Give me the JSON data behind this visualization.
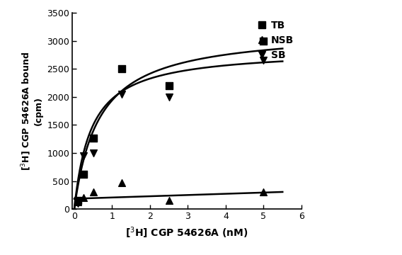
{
  "title": "",
  "xlabel": "[$^3$H] CGP 54626A (nM)",
  "ylabel_line1": "[$^3$H] CGP 54626A bound",
  "ylabel_line2": "(cpm)",
  "xlim": [
    -0.05,
    6.0
  ],
  "ylim": [
    0,
    3500
  ],
  "xticks": [
    0,
    1,
    2,
    3,
    4,
    5,
    6
  ],
  "yticks": [
    0,
    500,
    1000,
    1500,
    2000,
    2500,
    3000,
    3500
  ],
  "TB_x": [
    0.1,
    0.25,
    0.5,
    1.25,
    2.5,
    5.0
  ],
  "TB_y": [
    150,
    620,
    1260,
    2500,
    2200,
    3000
  ],
  "NSB_x": [
    0.1,
    0.25,
    0.5,
    1.25,
    2.5,
    5.0
  ],
  "NSB_y": [
    130,
    200,
    300,
    470,
    160,
    310
  ],
  "SB_x": [
    0.1,
    0.25,
    0.5,
    1.25,
    2.5,
    5.0
  ],
  "SB_y": [
    100,
    950,
    1000,
    2050,
    2000,
    2650
  ],
  "legend_labels": [
    "TB",
    "NSB",
    "SB"
  ],
  "marker_TB": "s",
  "marker_NSB": "^",
  "marker_SB": "v",
  "color": "black",
  "linewidth": 1.8,
  "markersize": 7,
  "background_color": "#ffffff",
  "TB_Bmax": 3200,
  "TB_Kd": 0.65,
  "SB_Bmax": 2850,
  "SB_Kd": 0.45,
  "NSB_slope": 22,
  "NSB_intercept": 185
}
